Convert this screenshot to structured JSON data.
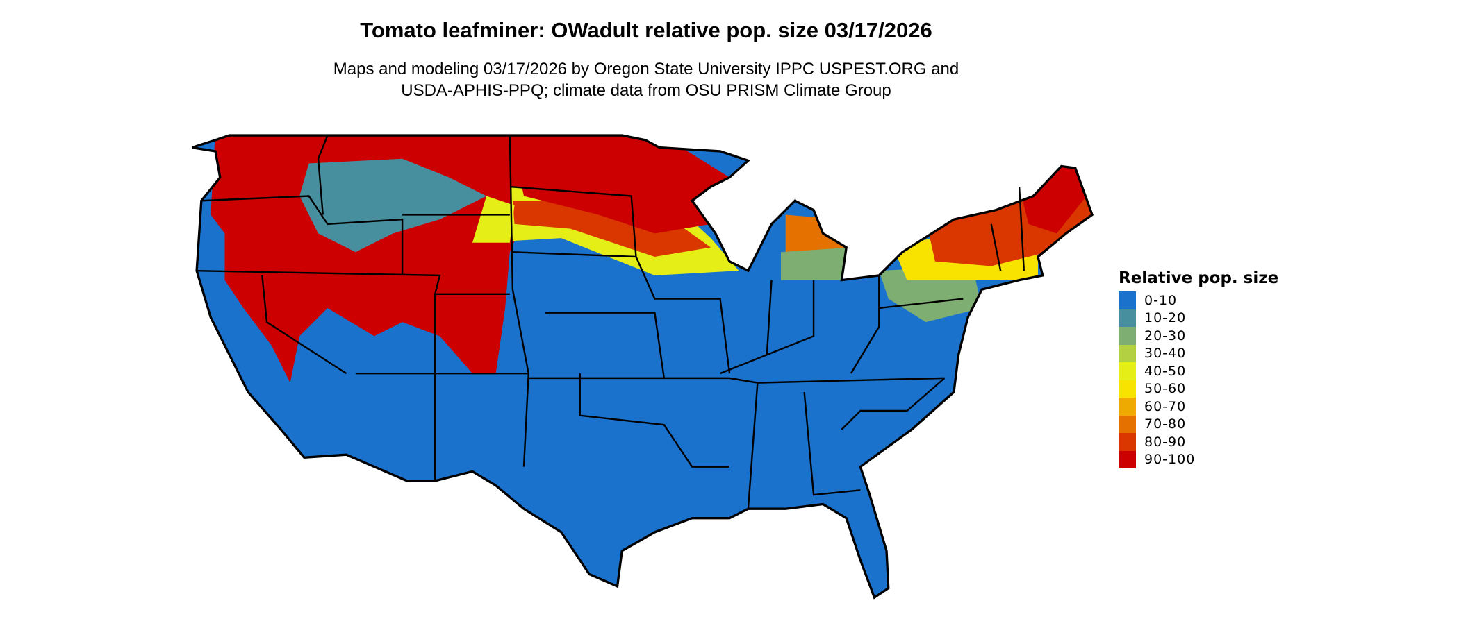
{
  "title": "Tomato leafminer: OWadult relative pop. size 03/17/2026",
  "subtitle_line1": "Maps and modeling 03/17/2026 by Oregon State University IPPC USPEST.ORG and",
  "subtitle_line2": "USDA-APHIS-PPQ; climate data from OSU PRISM Climate Group",
  "legend": {
    "title": "Relative pop. size",
    "items": [
      {
        "label": "0-10",
        "color": "#1a72cc"
      },
      {
        "label": "10-20",
        "color": "#478f9e"
      },
      {
        "label": "20-30",
        "color": "#7eae72"
      },
      {
        "label": "30-40",
        "color": "#b3d043"
      },
      {
        "label": "40-50",
        "color": "#e5ef17"
      },
      {
        "label": "50-60",
        "color": "#f8e200"
      },
      {
        "label": "60-70",
        "color": "#eeaa00"
      },
      {
        "label": "70-80",
        "color": "#e47100"
      },
      {
        "label": "80-90",
        "color": "#da3700"
      },
      {
        "label": "90-100",
        "color": "#cc0000"
      }
    ]
  }
}
